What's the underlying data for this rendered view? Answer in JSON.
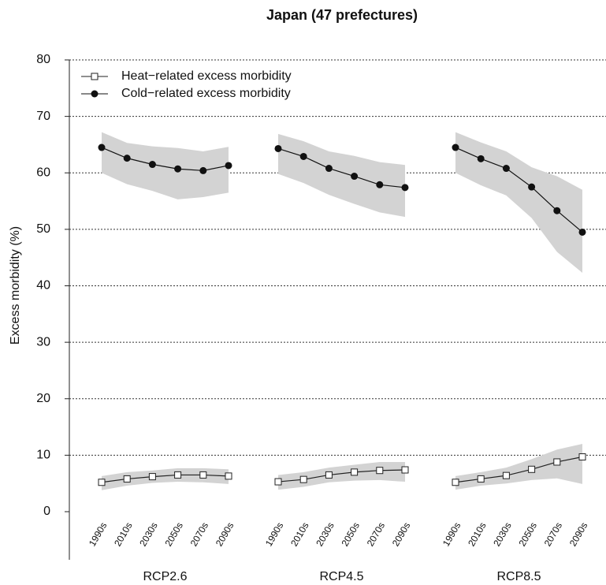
{
  "chart_data": {
    "type": "line",
    "title": "Japan (47 prefectures)",
    "ylabel": "Excess morbidity (%)",
    "ylim": [
      0,
      80
    ],
    "yticks": [
      0,
      10,
      20,
      30,
      40,
      50,
      60,
      70,
      80
    ],
    "grid": true,
    "legend": "top-left",
    "band_color": "#d3d3d3",
    "categories": [
      "1990s",
      "2010s",
      "2030s",
      "2050s",
      "2070s",
      "2090s"
    ],
    "series": [
      {
        "name": "Heat−related excess morbidity",
        "color": "#222222",
        "marker": "open-square"
      },
      {
        "name": "Cold−related excess morbidity",
        "color": "#111111",
        "marker": "filled-circle"
      }
    ],
    "panels": [
      {
        "label": "RCP2.6",
        "values": [
          [
            5.2,
            5.8,
            6.2,
            6.5,
            6.5,
            6.3
          ],
          [
            64.5,
            62.6,
            61.5,
            60.7,
            60.4,
            61.3
          ]
        ],
        "lower": [
          [
            3.8,
            4.6,
            5.1,
            5.3,
            5.2,
            4.9
          ],
          [
            60,
            58,
            56.8,
            55.3,
            55.7,
            56.5
          ]
        ],
        "upper": [
          [
            6.3,
            7.0,
            7.3,
            7.7,
            7.7,
            7.5
          ],
          [
            67.2,
            65.3,
            64.7,
            64.4,
            63.8,
            64.6
          ]
        ]
      },
      {
        "label": "RCP4.5",
        "values": [
          [
            5.3,
            5.7,
            6.5,
            7.0,
            7.3,
            7.4
          ],
          [
            64.3,
            62.9,
            60.8,
            59.4,
            57.9,
            57.4
          ]
        ],
        "lower": [
          [
            3.9,
            4.4,
            5.2,
            5.5,
            5.6,
            5.3
          ],
          [
            59.8,
            58.2,
            56.1,
            54.5,
            53,
            52.2
          ]
        ],
        "upper": [
          [
            6.5,
            7.0,
            7.8,
            8.3,
            8.8,
            8.8
          ],
          [
            66.9,
            65.6,
            63.8,
            63,
            61.9,
            61.4
          ]
        ]
      },
      {
        "label": "RCP8.5",
        "values": [
          [
            5.2,
            5.8,
            6.4,
            7.5,
            8.8,
            9.7
          ],
          [
            64.5,
            62.5,
            60.8,
            57.5,
            53.3,
            49.5
          ]
        ],
        "lower": [
          [
            3.9,
            4.6,
            5.0,
            5.6,
            5.9,
            4.9
          ],
          [
            60,
            57.8,
            56,
            52,
            46,
            42.3
          ]
        ],
        "upper": [
          [
            6.3,
            7.0,
            7.8,
            9.3,
            11,
            12
          ],
          [
            67.2,
            65.4,
            63.8,
            61,
            59.4,
            57
          ]
        ]
      }
    ]
  }
}
